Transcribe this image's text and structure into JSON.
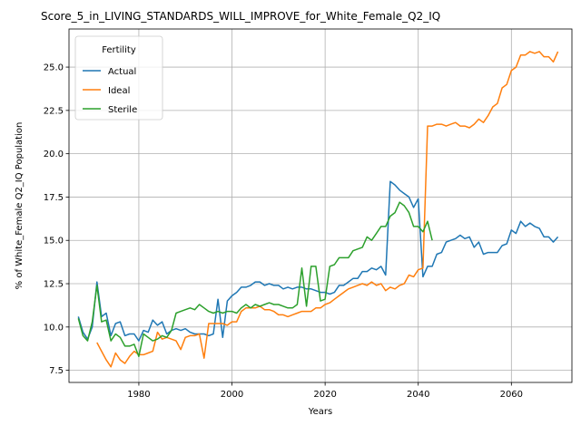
{
  "chart_data": {
    "type": "line",
    "title": "Score_5_in_LIVING_STANDARDS_WILL_IMPROVE_for_White_Female_Q2_IQ",
    "xlabel": "Years",
    "ylabel": "% of White_Female Q2_IQ Population",
    "xlim": [
      1965,
      2073
    ],
    "ylim": [
      6.8,
      27.2
    ],
    "xticks": [
      1980,
      2000,
      2020,
      2040,
      2060
    ],
    "yticks": [
      7.5,
      10.0,
      12.5,
      15.0,
      17.5,
      20.0,
      22.5,
      25.0
    ],
    "ytick_labels": [
      "7.5",
      "10.0",
      "12.5",
      "15.0",
      "17.5",
      "20.0",
      "22.5",
      "25.0"
    ],
    "grid": true,
    "legend": {
      "title": "Fertility",
      "placement": "top-left"
    },
    "series": [
      {
        "name": "Actual",
        "color": "#1f77b4",
        "x": [
          1967,
          1968,
          1969,
          1970,
          1971,
          1972,
          1973,
          1974,
          1975,
          1976,
          1977,
          1978,
          1979,
          1980,
          1981,
          1982,
          1983,
          1984,
          1985,
          1986,
          1987,
          1988,
          1989,
          1990,
          1991,
          1992,
          1993,
          1994,
          1995,
          1996,
          1997,
          1998,
          1999,
          2000,
          2001,
          2002,
          2003,
          2004,
          2005,
          2006,
          2007,
          2008,
          2009,
          2010,
          2011,
          2012,
          2013,
          2014,
          2015,
          2016,
          2017,
          2018,
          2019,
          2020,
          2021,
          2022,
          2023,
          2024,
          2025,
          2026,
          2027,
          2028,
          2029,
          2030,
          2031,
          2032,
          2033,
          2034,
          2035,
          2036,
          2037,
          2038,
          2039,
          2040,
          2041,
          2042,
          2043,
          2044,
          2045,
          2046,
          2047,
          2048,
          2049,
          2050,
          2051,
          2052,
          2053,
          2054,
          2055,
          2056,
          2057,
          2058,
          2059,
          2060,
          2061,
          2062,
          2063,
          2064,
          2065,
          2066,
          2067,
          2068,
          2069,
          2070
        ],
        "y": [
          10.6,
          9.7,
          9.3,
          10.0,
          12.6,
          10.6,
          10.8,
          9.5,
          10.2,
          10.3,
          9.5,
          9.6,
          9.6,
          9.2,
          9.8,
          9.7,
          10.4,
          10.1,
          10.3,
          9.6,
          9.8,
          9.9,
          9.8,
          9.9,
          9.7,
          9.6,
          9.6,
          9.6,
          9.5,
          9.6,
          11.6,
          9.4,
          11.5,
          11.8,
          12.0,
          12.3,
          12.3,
          12.4,
          12.6,
          12.6,
          12.4,
          12.5,
          12.4,
          12.4,
          12.2,
          12.3,
          12.2,
          12.3,
          12.3,
          12.2,
          12.2,
          12.1,
          12.0,
          12.0,
          11.9,
          12.0,
          12.4,
          12.4,
          12.6,
          12.8,
          12.8,
          13.2,
          13.2,
          13.4,
          13.3,
          13.5,
          13.0,
          18.4,
          18.2,
          17.9,
          17.7,
          17.5,
          16.9,
          17.4,
          12.9,
          13.5,
          13.5,
          14.2,
          14.3,
          14.9,
          15.0,
          15.1,
          15.3,
          15.1,
          15.2,
          14.6,
          14.9,
          14.2,
          14.3,
          14.3,
          14.3,
          14.7,
          14.8,
          15.6,
          15.4,
          16.1,
          15.8,
          16.0,
          15.8,
          15.7,
          15.2,
          15.2,
          14.9,
          15.2
        ]
      },
      {
        "name": "Ideal",
        "color": "#ff7f0e",
        "x": [
          1971,
          1972,
          1973,
          1974,
          1975,
          1976,
          1977,
          1978,
          1979,
          1980,
          1981,
          1982,
          1983,
          1984,
          1985,
          1986,
          1987,
          1988,
          1989,
          1990,
          1991,
          1992,
          1993,
          1994,
          1995,
          1996,
          1997,
          1998,
          1999,
          2000,
          2001,
          2002,
          2003,
          2004,
          2005,
          2006,
          2007,
          2008,
          2009,
          2010,
          2011,
          2012,
          2013,
          2014,
          2015,
          2016,
          2017,
          2018,
          2019,
          2020,
          2021,
          2022,
          2023,
          2024,
          2025,
          2026,
          2027,
          2028,
          2029,
          2030,
          2031,
          2032,
          2033,
          2034,
          2035,
          2036,
          2037,
          2038,
          2039,
          2040,
          2041,
          2042,
          2043,
          2044,
          2045,
          2046,
          2047,
          2048,
          2049,
          2050,
          2051,
          2052,
          2053,
          2054,
          2055,
          2056,
          2057,
          2058,
          2059,
          2060,
          2061,
          2062,
          2063,
          2064,
          2065,
          2066,
          2067,
          2068,
          2069,
          2070
        ],
        "y": [
          9.1,
          8.6,
          8.1,
          7.7,
          8.5,
          8.1,
          7.9,
          8.3,
          8.6,
          8.4,
          8.4,
          8.5,
          8.6,
          9.7,
          9.3,
          9.4,
          9.3,
          9.2,
          8.7,
          9.4,
          9.5,
          9.5,
          9.6,
          8.2,
          10.2,
          10.2,
          10.2,
          10.2,
          10.1,
          10.3,
          10.3,
          10.9,
          11.1,
          11.1,
          11.1,
          11.2,
          11.0,
          11.0,
          10.9,
          10.7,
          10.7,
          10.6,
          10.7,
          10.8,
          10.9,
          10.9,
          10.9,
          11.1,
          11.1,
          11.3,
          11.4,
          11.6,
          11.8,
          12.0,
          12.2,
          12.3,
          12.4,
          12.5,
          12.4,
          12.6,
          12.4,
          12.5,
          12.1,
          12.3,
          12.2,
          12.4,
          12.5,
          13.0,
          12.9,
          13.3,
          13.4,
          21.6,
          21.6,
          21.7,
          21.7,
          21.6,
          21.7,
          21.8,
          21.6,
          21.6,
          21.5,
          21.7,
          22.0,
          21.8,
          22.2,
          22.7,
          22.9,
          23.8,
          24.0,
          24.8,
          25.0,
          25.7,
          25.7,
          25.9,
          25.8,
          25.9,
          25.6,
          25.6,
          25.3,
          25.9
        ]
      },
      {
        "name": "Sterile",
        "color": "#2ca02c",
        "x": [
          1967,
          1968,
          1969,
          1970,
          1971,
          1972,
          1973,
          1974,
          1975,
          1976,
          1977,
          1978,
          1979,
          1980,
          1981,
          1982,
          1983,
          1984,
          1985,
          1986,
          1987,
          1988,
          1989,
          1990,
          1991,
          1992,
          1993,
          1994,
          1995,
          1996,
          1997,
          1998,
          1999,
          2000,
          2001,
          2002,
          2003,
          2004,
          2005,
          2006,
          2007,
          2008,
          2009,
          2010,
          2011,
          2012,
          2013,
          2014,
          2015,
          2016,
          2017,
          2018,
          2019,
          2020,
          2021,
          2022,
          2023,
          2024,
          2025,
          2026,
          2027,
          2028,
          2029,
          2030,
          2031,
          2032,
          2033,
          2034,
          2035,
          2036,
          2037,
          2038,
          2039,
          2040,
          2041,
          2042,
          2043
        ],
        "y": [
          10.5,
          9.5,
          9.2,
          10.3,
          12.4,
          10.3,
          10.4,
          9.2,
          9.6,
          9.4,
          8.9,
          8.9,
          9.0,
          8.3,
          9.6,
          9.4,
          9.2,
          9.3,
          9.5,
          9.4,
          9.8,
          10.8,
          10.9,
          11.0,
          11.1,
          11.0,
          11.3,
          11.1,
          10.9,
          10.8,
          10.9,
          10.8,
          10.9,
          10.9,
          10.8,
          11.1,
          11.3,
          11.1,
          11.3,
          11.2,
          11.3,
          11.4,
          11.3,
          11.3,
          11.2,
          11.1,
          11.1,
          11.3,
          13.4,
          11.2,
          13.5,
          13.5,
          11.5,
          11.6,
          13.5,
          13.6,
          14.0,
          14.0,
          14.0,
          14.4,
          14.5,
          14.6,
          15.2,
          15.0,
          15.4,
          15.8,
          15.8,
          16.4,
          16.6,
          17.2,
          17.0,
          16.6,
          15.8,
          15.8,
          15.5,
          16.1,
          15.0
        ]
      }
    ]
  }
}
